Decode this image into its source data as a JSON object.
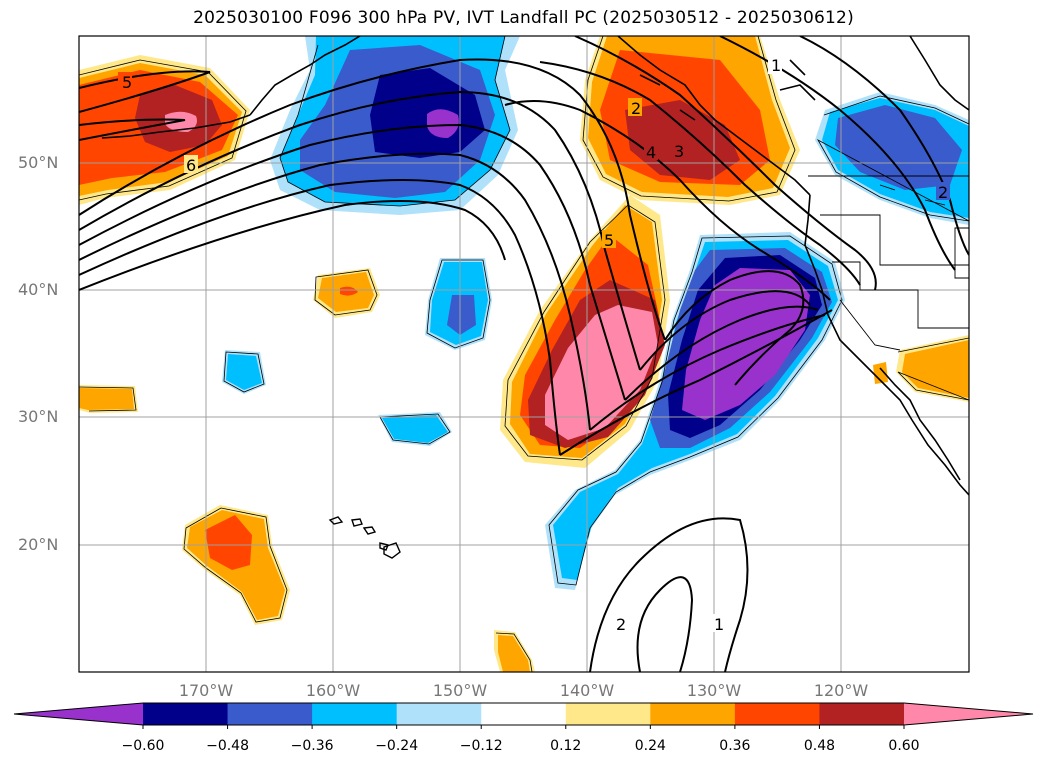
{
  "title": "2025030100 F096 300 hPa PV, IVT Landfall PC (2025030512 - 2025030612)",
  "map": {
    "lon_range": [
      -180,
      -110
    ],
    "lat_range": [
      10,
      60
    ],
    "lat_ticks": [
      {
        "value": 50,
        "label": "50°N"
      },
      {
        "value": 40,
        "label": "40°N"
      },
      {
        "value": 30,
        "label": "30°N"
      },
      {
        "value": 20,
        "label": "20°N"
      }
    ],
    "lon_ticks": [
      {
        "value": -170,
        "label": "170°W"
      },
      {
        "value": -160,
        "label": "160°W"
      },
      {
        "value": -150,
        "label": "150°W"
      },
      {
        "value": -140,
        "label": "140°W"
      },
      {
        "value": -130,
        "label": "130°W"
      },
      {
        "value": -120,
        "label": "120°W"
      }
    ],
    "gridlines": true,
    "contour_labels": [
      "5",
      "6",
      "1",
      "2",
      "3",
      "4",
      "5",
      "2",
      "1",
      "2"
    ]
  },
  "colorbar": {
    "colors": [
      "#9932cc",
      "#00008b",
      "#3a5bcc",
      "#00bfff",
      "#afe1fa",
      "#ffffff",
      "#ffe88a",
      "#ffa500",
      "#ff4500",
      "#b22222",
      "#ff88aa"
    ],
    "labels": [
      "−0.60",
      "−0.48",
      "−0.36",
      "−0.24",
      "−0.12",
      "0.12",
      "0.24",
      "0.36",
      "0.48",
      "0.60"
    ],
    "extend": "both"
  }
}
